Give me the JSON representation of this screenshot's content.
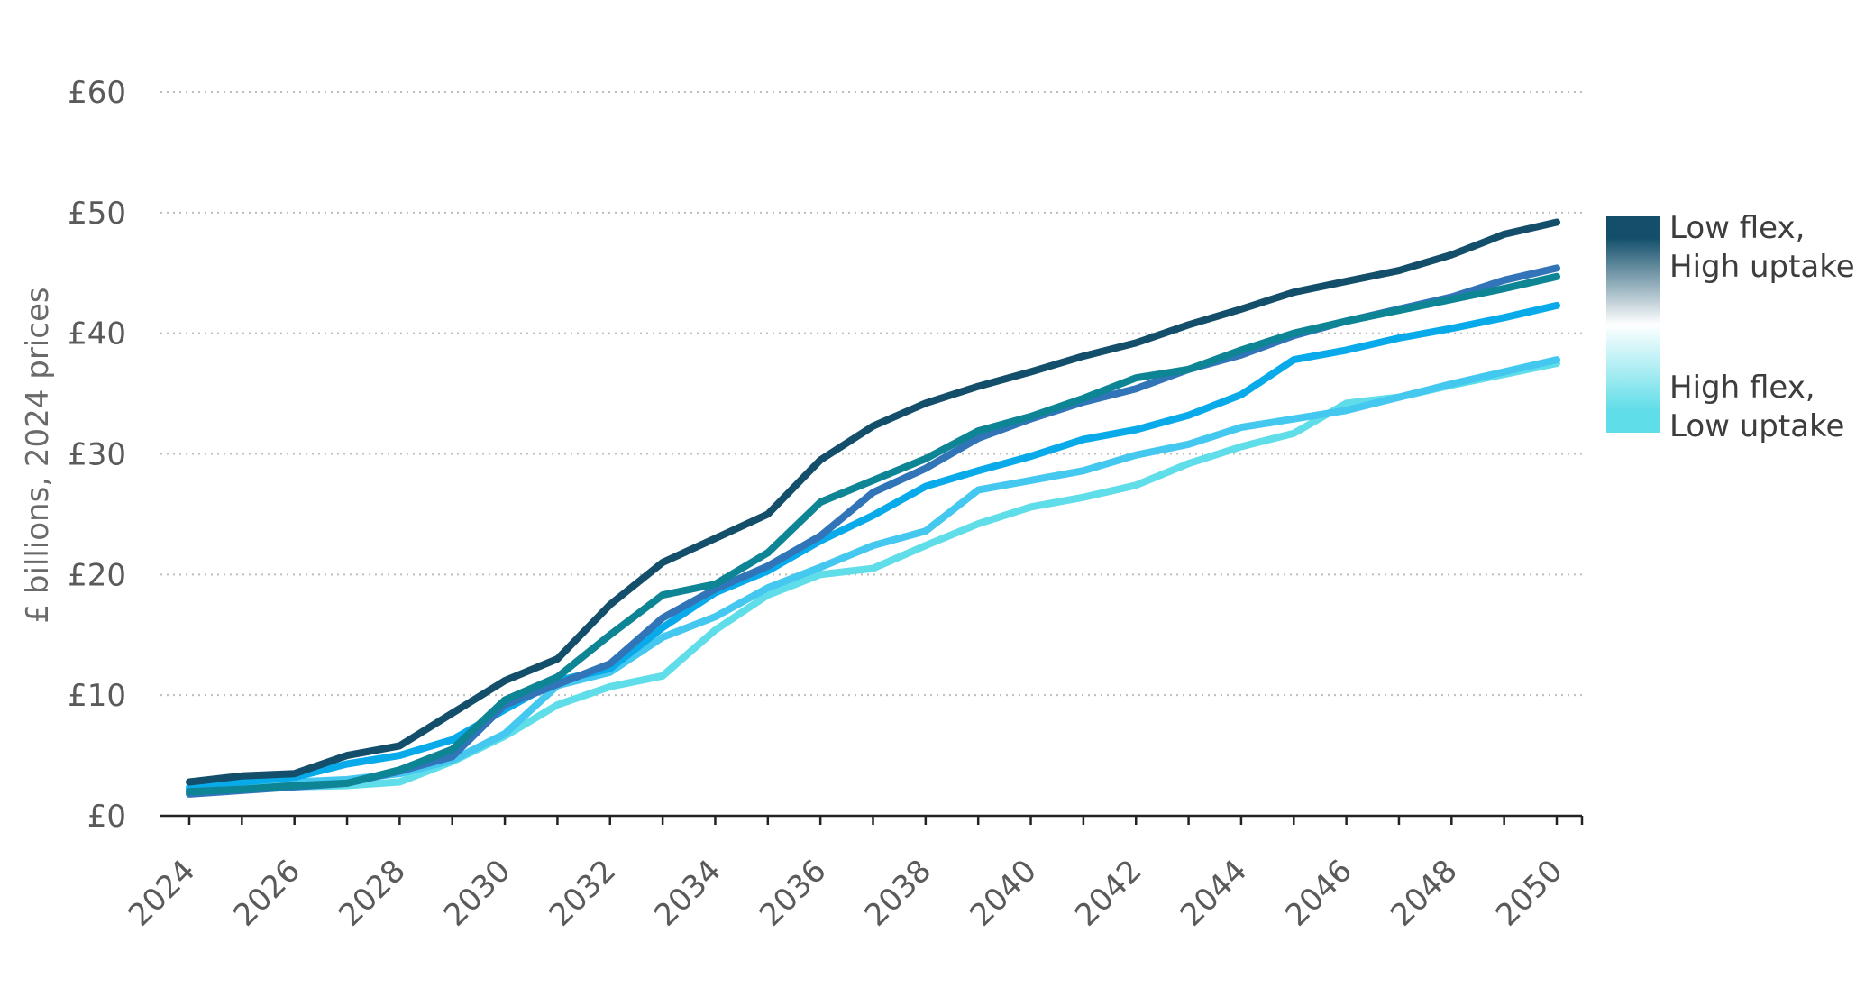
{
  "chart_data": {
    "type": "line",
    "title": "",
    "xlabel": "",
    "ylabel": "£ billions, 2024 prices",
    "x": [
      2024,
      2025,
      2026,
      2027,
      2028,
      2029,
      2030,
      2031,
      2032,
      2033,
      2034,
      2035,
      2036,
      2037,
      2038,
      2039,
      2040,
      2041,
      2042,
      2043,
      2044,
      2045,
      2046,
      2047,
      2048,
      2049,
      2050
    ],
    "x_tick_labels": [
      "2024",
      "2026",
      "2028",
      "2030",
      "2032",
      "2034",
      "2036",
      "2038",
      "2040",
      "2042",
      "2044",
      "2046",
      "2048",
      "2050"
    ],
    "y_ticks": [
      0,
      10,
      20,
      30,
      40,
      50,
      60
    ],
    "y_tick_labels": [
      "£0",
      "£10",
      "£20",
      "£30",
      "£40",
      "£50",
      "£60"
    ],
    "ylim": [
      0,
      60
    ],
    "xlim": [
      2024,
      2050
    ],
    "grid": "horizontal dotted",
    "legend": {
      "placement": "right",
      "type": "gradient",
      "top_label": [
        "Low flex,",
        "High uptake"
      ],
      "bottom_label": [
        "High flex,",
        "Low uptake"
      ],
      "top_color": "#134f6b",
      "bottom_color": "#5fdde8"
    },
    "series": [
      {
        "color": "#134f6b",
        "values": [
          2.8,
          3.3,
          3.5,
          5.0,
          5.8,
          8.5,
          11.2,
          13.0,
          17.5,
          21.0,
          23.0,
          25.0,
          29.5,
          32.3,
          34.2,
          35.6,
          36.8,
          38.1,
          39.2,
          40.7,
          42.0,
          43.4,
          44.3,
          45.2,
          46.5,
          48.2,
          49.2
        ]
      },
      {
        "color": "#0d8595",
        "values": [
          2.0,
          2.2,
          2.5,
          2.7,
          3.8,
          5.5,
          9.6,
          11.5,
          15.0,
          18.3,
          19.2,
          21.8,
          26.0,
          27.8,
          29.6,
          31.9,
          33.1,
          34.6,
          36.3,
          37.0,
          38.6,
          40.0,
          41.0,
          41.9,
          42.8,
          43.7,
          44.7
        ]
      },
      {
        "color": "#3175b8",
        "values": [
          1.8,
          2.1,
          2.4,
          2.7,
          3.7,
          4.9,
          9.2,
          10.9,
          12.6,
          16.4,
          18.8,
          20.7,
          23.2,
          26.8,
          28.8,
          31.3,
          32.9,
          34.3,
          35.4,
          37.0,
          38.2,
          39.8,
          41.0,
          42.0,
          43.0,
          44.4,
          45.4
        ]
      },
      {
        "color": "#08aaea",
        "values": [
          2.2,
          2.8,
          3.2,
          4.3,
          5.0,
          6.3,
          8.8,
          11.2,
          12.2,
          15.6,
          18.5,
          20.3,
          22.8,
          24.9,
          27.3,
          28.6,
          29.8,
          31.2,
          32.0,
          33.2,
          34.9,
          37.8,
          38.6,
          39.6,
          40.4,
          41.3,
          42.3
        ]
      },
      {
        "color": "#45c8f0",
        "values": [
          2.4,
          2.6,
          2.8,
          3.0,
          3.5,
          4.6,
          6.8,
          10.8,
          11.9,
          14.8,
          16.5,
          18.9,
          20.6,
          22.4,
          23.6,
          27.0,
          27.8,
          28.6,
          29.9,
          30.8,
          32.2,
          32.9,
          33.6,
          34.7,
          35.8,
          36.8,
          37.8
        ]
      },
      {
        "color": "#5fdde8",
        "values": [
          2.0,
          2.2,
          2.4,
          2.5,
          2.8,
          4.5,
          6.6,
          9.2,
          10.7,
          11.6,
          15.4,
          18.3,
          20.0,
          20.5,
          22.4,
          24.2,
          25.6,
          26.4,
          27.4,
          29.2,
          30.6,
          31.7,
          34.2,
          34.7,
          35.7,
          36.6,
          37.5
        ]
      }
    ]
  }
}
